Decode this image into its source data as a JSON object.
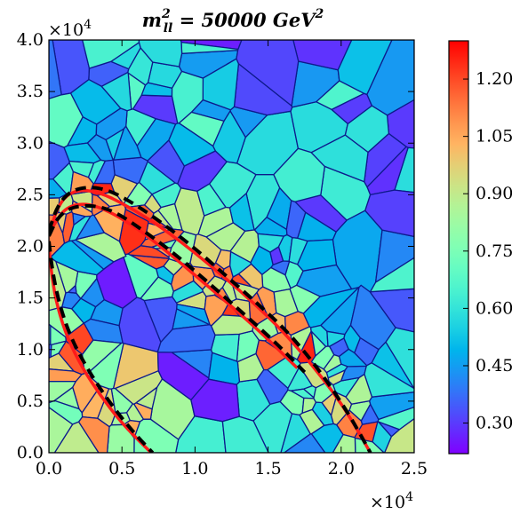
{
  "chart_data": {
    "type": "heatmap",
    "title": {
      "main": "m",
      "sup": "2",
      "sub": "ll",
      "rest": " = 50000 GeV",
      "sup2": "2"
    },
    "xlabel": "",
    "ylabel": "",
    "x_scale_label": "×10",
    "x_scale_exp": "4",
    "y_scale_label": "×10",
    "y_scale_exp": "4",
    "xlim": [
      0,
      25000
    ],
    "ylim": [
      0,
      40000
    ],
    "xticks": [
      0,
      5000,
      10000,
      15000,
      20000,
      25000
    ],
    "xtick_labels": [
      "0.0",
      "0.5",
      "1.0",
      "1.5",
      "2.0",
      "2.5"
    ],
    "yticks": [
      0,
      5000,
      10000,
      15000,
      20000,
      25000,
      30000,
      35000,
      40000
    ],
    "ytick_labels": [
      "0.0",
      "0.5",
      "1.0",
      "1.5",
      "2.0",
      "2.5",
      "3.0",
      "3.5",
      "4.0"
    ],
    "colorbar": {
      "colormap": "rainbow",
      "range": [
        0.22,
        1.3
      ],
      "ticks": [
        0.3,
        0.45,
        0.6,
        0.75,
        0.9,
        1.05,
        1.2
      ],
      "tick_labels": [
        "0.30",
        "0.45",
        "0.60",
        "0.75",
        "0.90",
        "1.05",
        "1.20"
      ]
    },
    "colors": {
      "cell_edge": "#0d1a8c",
      "red_curve": "#ff1a1a",
      "black_dashed": "#000000"
    },
    "voronoi_seed": 7,
    "voronoi_cells_approx": 260,
    "contours": [
      {
        "name": "",
        "style": "red-solid",
        "points": [
          [
            0,
            21000
          ],
          [
            500,
            23500
          ],
          [
            1200,
            25000
          ],
          [
            2200,
            25500
          ],
          [
            3500,
            25200
          ],
          [
            5000,
            24200
          ],
          [
            7000,
            22500
          ],
          [
            9000,
            20500
          ],
          [
            11000,
            18200
          ],
          [
            13000,
            15800
          ],
          [
            15000,
            13200
          ],
          [
            16500,
            11000
          ],
          [
            18000,
            8500
          ],
          [
            19500,
            5800
          ],
          [
            20800,
            3000
          ],
          [
            22000,
            0
          ]
        ]
      },
      {
        "name": "",
        "style": "red-solid",
        "points": [
          [
            0,
            21000
          ],
          [
            400,
            22300
          ],
          [
            1200,
            23800
          ],
          [
            2500,
            24200
          ],
          [
            4000,
            23500
          ],
          [
            6000,
            21800
          ],
          [
            8000,
            19600
          ],
          [
            10000,
            17200
          ],
          [
            12000,
            14800
          ],
          [
            14000,
            12300
          ],
          [
            15500,
            10300
          ],
          [
            17000,
            8200
          ]
        ]
      },
      {
        "name": "",
        "style": "red-solid",
        "points": [
          [
            0,
            20000
          ],
          [
            200,
            17000
          ],
          [
            600,
            14000
          ],
          [
            1300,
            11000
          ],
          [
            2300,
            8200
          ],
          [
            3500,
            5600
          ],
          [
            4800,
            3200
          ],
          [
            6000,
            1400
          ],
          [
            7000,
            0
          ]
        ]
      },
      {
        "name": "",
        "style": "black-dashed",
        "points": [
          [
            0,
            21500
          ],
          [
            600,
            24000
          ],
          [
            1500,
            25400
          ],
          [
            2800,
            25800
          ],
          [
            4200,
            25400
          ],
          [
            6000,
            24000
          ],
          [
            8000,
            22000
          ],
          [
            10000,
            19800
          ],
          [
            12000,
            17300
          ],
          [
            14000,
            14800
          ],
          [
            16000,
            12200
          ],
          [
            17500,
            9800
          ],
          [
            19000,
            7000
          ],
          [
            20500,
            3800
          ],
          [
            21700,
            800
          ],
          [
            22000,
            0
          ]
        ]
      },
      {
        "name": "",
        "style": "black-dashed",
        "points": [
          [
            0,
            21000
          ],
          [
            600,
            22800
          ],
          [
            1500,
            23800
          ],
          [
            3000,
            24000
          ],
          [
            4500,
            23400
          ],
          [
            6500,
            21500
          ],
          [
            8500,
            19400
          ],
          [
            10500,
            17000
          ],
          [
            12500,
            14500
          ],
          [
            14500,
            12000
          ],
          [
            16000,
            10000
          ],
          [
            17500,
            7800
          ]
        ]
      },
      {
        "name": "",
        "style": "black-dashed",
        "points": [
          [
            0,
            20500
          ],
          [
            250,
            17500
          ],
          [
            700,
            14500
          ],
          [
            1400,
            11500
          ],
          [
            2400,
            8700
          ],
          [
            3600,
            6000
          ],
          [
            4900,
            3500
          ],
          [
            6100,
            1500
          ],
          [
            7100,
            0
          ]
        ]
      }
    ]
  }
}
